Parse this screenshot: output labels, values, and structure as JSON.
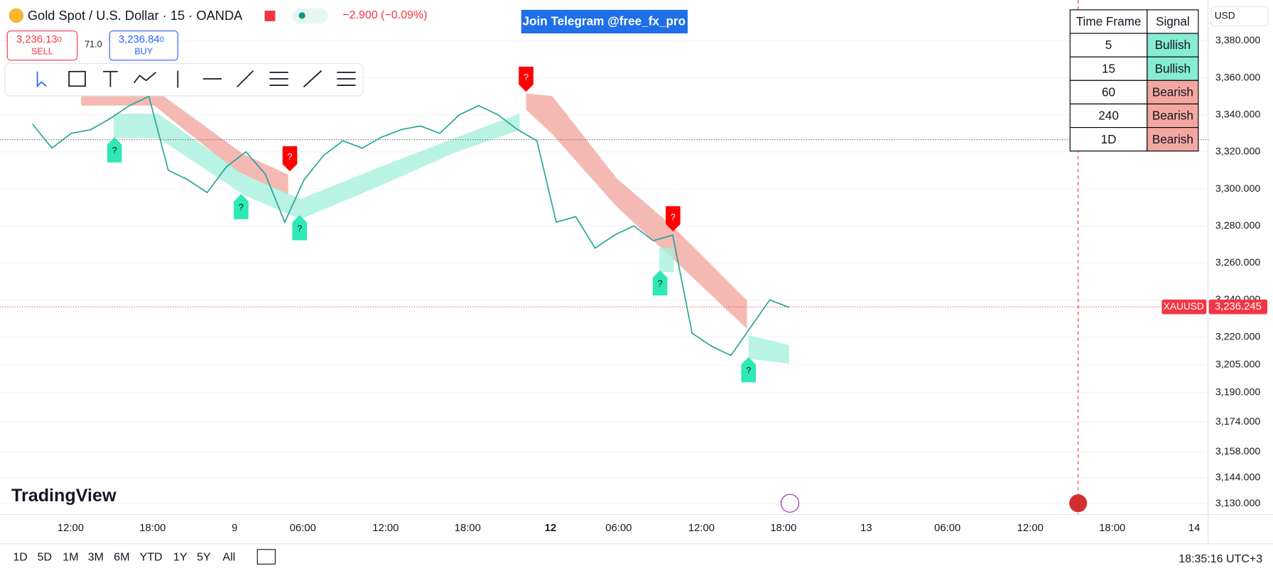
{
  "header": {
    "title": "Gold Spot / U.S. Dollar · 15 · OANDA",
    "change": "−2.900 (−0.09%)",
    "sell_price": "3,236.13",
    "sell_price_tail": "0",
    "sell_label": "SELL",
    "spread": "71.0",
    "buy_price": "3,236.84",
    "buy_price_tail": "0",
    "buy_label": "BUY"
  },
  "banner": "Join Telegram @free_fx_pro",
  "currency": "USD",
  "signal_table": {
    "header": [
      "Time Frame",
      "Signal"
    ],
    "rows": [
      {
        "tf": "5",
        "signal": "Bullish",
        "color": "#86ecd2"
      },
      {
        "tf": "15",
        "signal": "Bullish",
        "color": "#86ecd2"
      },
      {
        "tf": "60",
        "signal": "Bearish",
        "color": "#f3a7a1"
      },
      {
        "tf": "240",
        "signal": "Bearish",
        "color": "#f3a7a1"
      },
      {
        "tf": "1D",
        "signal": "Bearish",
        "color": "#f3a7a1"
      }
    ]
  },
  "chart_data": {
    "type": "line",
    "symbol": "XAUUSD",
    "last_price": 3236.245,
    "last_price_label": "3,236.245",
    "color": "#26a69a",
    "ylim": [
      3124,
      3402
    ],
    "yticks": [
      {
        "value": 3380,
        "label": "3,380.000"
      },
      {
        "value": 3360,
        "label": "3,360.000"
      },
      {
        "value": 3340,
        "label": "3,340.000"
      },
      {
        "value": 3320,
        "label": "3,320.000"
      },
      {
        "value": 3300,
        "label": "3,300.000"
      },
      {
        "value": 3280,
        "label": "3,280.000"
      },
      {
        "value": 3260,
        "label": "3,260.000"
      },
      {
        "value": 3240,
        "label": "3,240.000"
      },
      {
        "value": 3220,
        "label": "3,220.000"
      },
      {
        "value": 3205,
        "label": "3,205.000"
      },
      {
        "value": 3190,
        "label": "3,190.000"
      },
      {
        "value": 3174,
        "label": "3,174.000"
      },
      {
        "value": 3158,
        "label": "3,158.000"
      },
      {
        "value": 3144,
        "label": "3,144.000"
      },
      {
        "value": 3130,
        "label": "3,130.000"
      }
    ],
    "x_labels": [
      "12:00",
      "18:00",
      "9",
      "06:00",
      "12:00",
      "18:00",
      "12",
      "06:00",
      "12:00",
      "18:00",
      "13",
      "06:00",
      "12:00",
      "18:00",
      "14"
    ],
    "values": [
      3335,
      3322,
      3330,
      3332,
      3338,
      3345,
      3350,
      3310,
      3305,
      3298,
      3312,
      3320,
      3308,
      3282,
      3305,
      3318,
      3326,
      3322,
      3328,
      3332,
      3334,
      3330,
      3340,
      3345,
      3340,
      3332,
      3326,
      3282,
      3285,
      3268,
      3275,
      3280,
      3272,
      3275,
      3222,
      3215,
      3210,
      3225,
      3240,
      3236
    ]
  },
  "signals": [
    {
      "label": "?",
      "dir": "up"
    },
    {
      "label": "?",
      "dir": "up"
    },
    {
      "label": "?",
      "dir": "up"
    },
    {
      "label": "?",
      "dir": "up"
    },
    {
      "label": "?",
      "dir": "up"
    },
    {
      "label": "?",
      "dir": "down"
    },
    {
      "label": "?",
      "dir": "down"
    },
    {
      "label": "?",
      "dir": "down"
    }
  ],
  "range_buttons": [
    "1D",
    "5D",
    "1M",
    "3M",
    "6M",
    "YTD",
    "1Y",
    "5Y",
    "All"
  ],
  "clock": "18:35:16 UTC+3",
  "logo": "TradingView"
}
